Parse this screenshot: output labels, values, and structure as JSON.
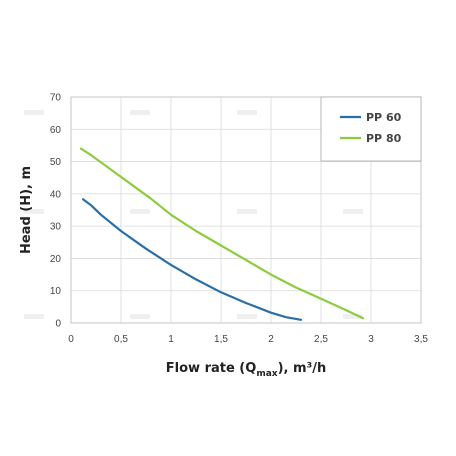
{
  "chart_data": {
    "type": "line",
    "xlabel_main": "Flow rate (Q",
    "xlabel_sub": "max",
    "xlabel_tail": "), m³/h",
    "ylabel": "Head (H), m",
    "xlim": [
      0,
      3.5
    ],
    "ylim": [
      0,
      70
    ],
    "x_ticks": [
      "0",
      "0,5",
      "1",
      "1,5",
      "2",
      "2,5",
      "3",
      "3,5"
    ],
    "x_tick_values": [
      0,
      0.5,
      1,
      1.5,
      2,
      2.5,
      3,
      3.5
    ],
    "y_ticks": [
      "0",
      "10",
      "20",
      "30",
      "40",
      "50",
      "60",
      "70"
    ],
    "y_tick_values": [
      0,
      10,
      20,
      30,
      40,
      50,
      60,
      70
    ],
    "grid": true,
    "legend_position": "top-right",
    "series": [
      {
        "name": "PP 60",
        "color": "#2a6fa5",
        "x": [
          0.12,
          0.2,
          0.3,
          0.5,
          0.75,
          1.0,
          1.25,
          1.5,
          1.75,
          2.0,
          2.15,
          2.3
        ],
        "y": [
          38.3,
          36.5,
          33.5,
          28.5,
          23.0,
          18.0,
          13.5,
          9.5,
          6.2,
          3.2,
          1.8,
          1.0
        ]
      },
      {
        "name": "PP 80",
        "color": "#8ccc3e",
        "x": [
          0.1,
          0.2,
          0.4,
          0.6,
          0.8,
          1.0,
          1.25,
          1.5,
          1.75,
          2.0,
          2.25,
          2.5,
          2.75,
          2.92
        ],
        "y": [
          54.0,
          52.0,
          47.5,
          43.0,
          38.5,
          33.5,
          28.5,
          24.0,
          19.5,
          15.0,
          11.0,
          7.5,
          4.0,
          1.5
        ]
      }
    ]
  }
}
